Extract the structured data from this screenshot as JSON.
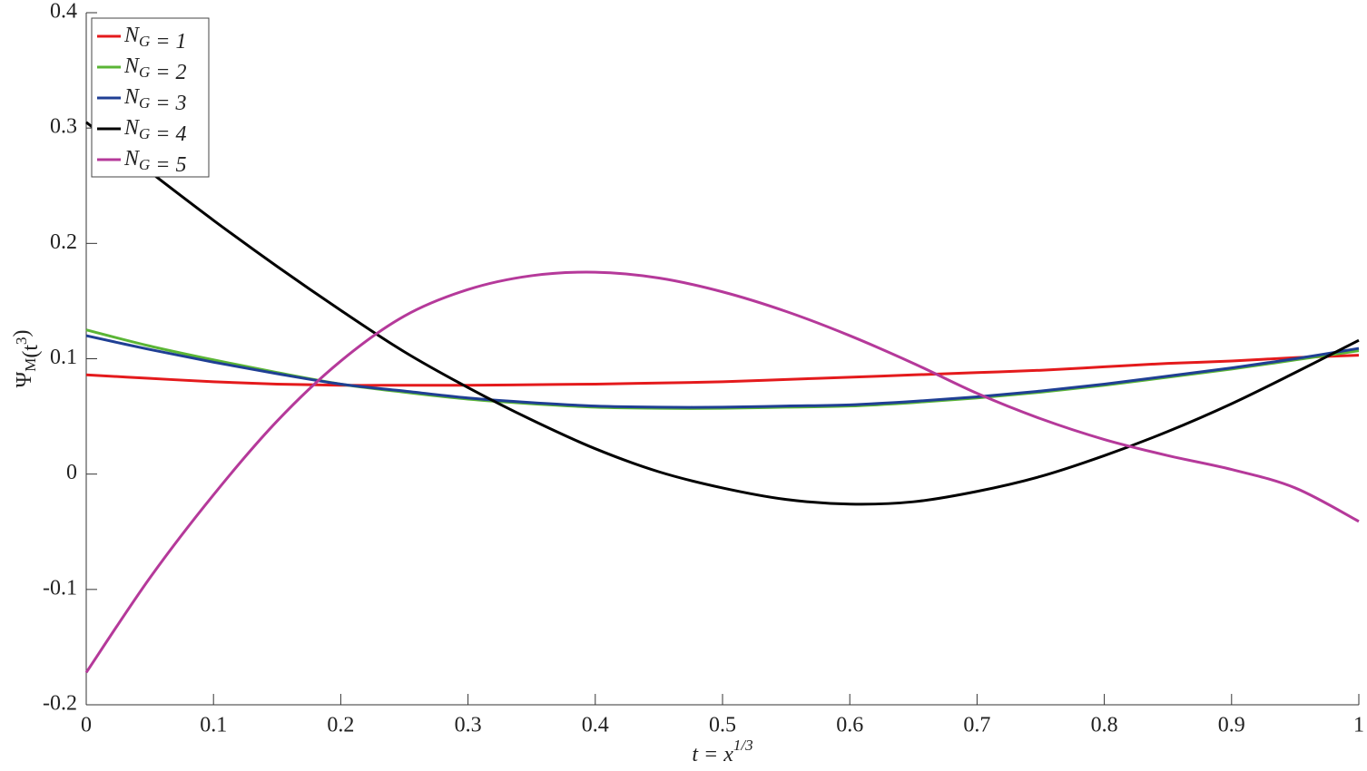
{
  "chart_data": {
    "type": "line",
    "xlabel": "t = x^1/3",
    "ylabel": "Ψ_M(t^3)",
    "x": [
      0,
      0.05,
      0.1,
      0.15,
      0.2,
      0.25,
      0.3,
      0.35,
      0.4,
      0.45,
      0.5,
      0.55,
      0.6,
      0.65,
      0.7,
      0.75,
      0.8,
      0.85,
      0.9,
      0.95,
      1
    ],
    "series": [
      {
        "name": "N_G = 1",
        "color": "#e41a1c",
        "values": [
          0.086,
          0.083,
          0.08,
          0.078,
          0.077,
          0.077,
          0.077,
          0.0775,
          0.078,
          0.079,
          0.08,
          0.082,
          0.084,
          0.086,
          0.088,
          0.09,
          0.093,
          0.096,
          0.098,
          0.101,
          0.103
        ]
      },
      {
        "name": "N_G = 2",
        "color": "#5ab535",
        "values": [
          0.125,
          0.111,
          0.099,
          0.088,
          0.078,
          0.071,
          0.065,
          0.061,
          0.058,
          0.057,
          0.057,
          0.058,
          0.059,
          0.062,
          0.066,
          0.071,
          0.077,
          0.084,
          0.091,
          0.099,
          0.107
        ]
      },
      {
        "name": "N_G = 3",
        "color": "#1f3f94",
        "values": [
          0.12,
          0.108,
          0.097,
          0.087,
          0.078,
          0.072,
          0.066,
          0.062,
          0.059,
          0.058,
          0.058,
          0.059,
          0.06,
          0.063,
          0.067,
          0.072,
          0.078,
          0.085,
          0.092,
          0.1,
          0.109
        ]
      },
      {
        "name": "N_G = 4",
        "color": "#000000",
        "values": [
          0.305,
          0.262,
          0.22,
          0.18,
          0.142,
          0.106,
          0.075,
          0.047,
          0.022,
          0.002,
          -0.012,
          -0.022,
          -0.026,
          -0.024,
          -0.015,
          -0.002,
          0.016,
          0.037,
          0.061,
          0.088,
          0.116
        ]
      },
      {
        "name": "N_G = 5",
        "color": "#b5399a",
        "values": [
          -0.172,
          -0.09,
          -0.018,
          0.046,
          0.098,
          0.137,
          0.16,
          0.172,
          0.175,
          0.17,
          0.158,
          0.141,
          0.12,
          0.096,
          0.07,
          0.048,
          0.03,
          0.016,
          0.004,
          -0.012,
          -0.041
        ]
      }
    ],
    "xlim": [
      0,
      1
    ],
    "xticks": [
      0,
      0.1,
      0.2,
      0.3,
      0.4,
      0.5,
      0.6,
      0.7,
      0.8,
      0.9,
      1
    ],
    "ylim": [
      -0.2,
      0.4
    ],
    "yticks": [
      -0.2,
      -0.1,
      0,
      0.1,
      0.2,
      0.3,
      0.4
    ],
    "legend": "top-left"
  }
}
